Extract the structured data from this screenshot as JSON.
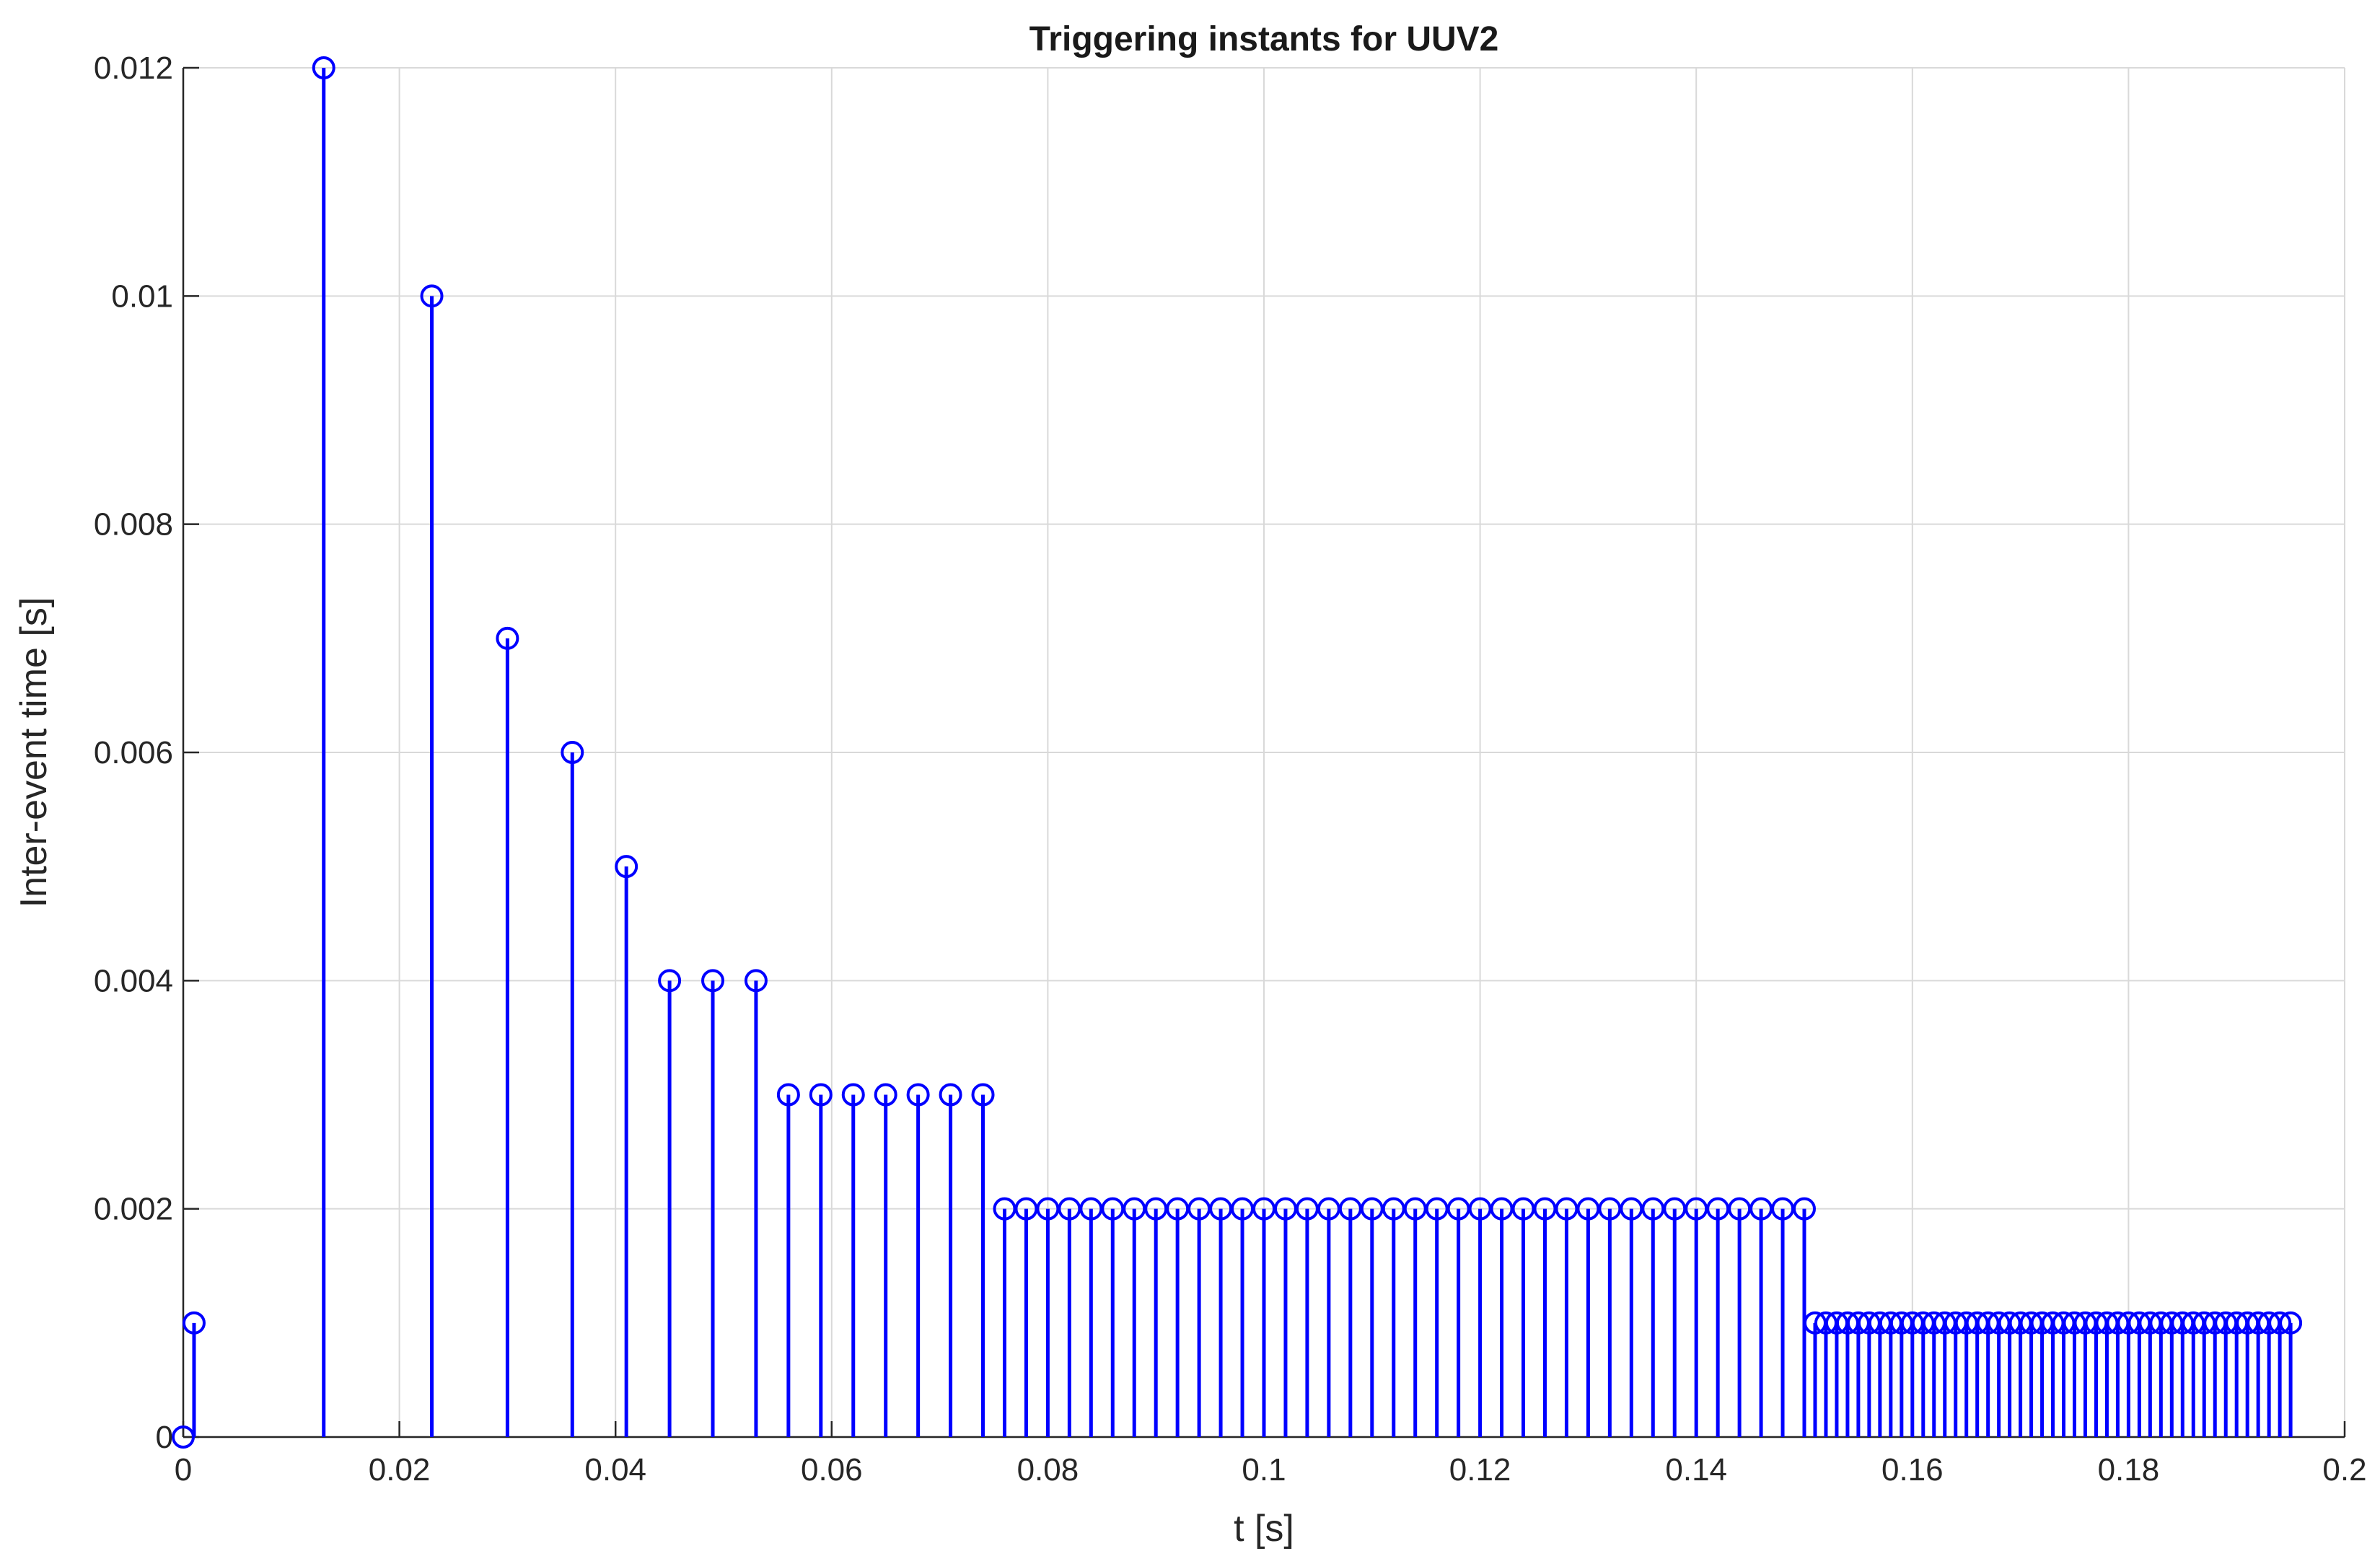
{
  "chart_data": {
    "type": "stem",
    "title": "Triggering instants for UUV2",
    "xlabel": "t [s]",
    "ylabel": "Inter-event time [s]",
    "xlim": [
      0,
      0.2
    ],
    "ylim": [
      0,
      0.012
    ],
    "x_ticks": [
      0,
      0.02,
      0.04,
      0.06,
      0.08,
      0.1,
      0.12,
      0.14,
      0.16,
      0.18,
      0.2
    ],
    "x_tick_labels": [
      "0",
      "0.02",
      "0.04",
      "0.06",
      "0.08",
      "0.1",
      "0.12",
      "0.14",
      "0.16",
      "0.18",
      "0.2"
    ],
    "y_ticks": [
      0,
      0.002,
      0.004,
      0.006,
      0.008,
      0.01,
      0.012
    ],
    "y_tick_labels": [
      "0",
      "0.002",
      "0.004",
      "0.006",
      "0.008",
      "0.01",
      "0.012"
    ],
    "grid": true,
    "series_color": "#0000ff",
    "grid_color": "#d9d9d9",
    "axis_color": "#262626",
    "marker": "circle-open",
    "series": [
      {
        "x": [
          0,
          0.001,
          0.013,
          0.023,
          0.03,
          0.036,
          0.041,
          0.045,
          0.049,
          0.053,
          0.056,
          0.059,
          0.062,
          0.065,
          0.068,
          0.071,
          0.074,
          0.076,
          0.078,
          0.08,
          0.082,
          0.084,
          0.086,
          0.088,
          0.09,
          0.092,
          0.094,
          0.096,
          0.098,
          0.1,
          0.102,
          0.104,
          0.106,
          0.108,
          0.11,
          0.112,
          0.114,
          0.116,
          0.118,
          0.12,
          0.122,
          0.124,
          0.126,
          0.128,
          0.13,
          0.132,
          0.134,
          0.136,
          0.138,
          0.14,
          0.142,
          0.144,
          0.146,
          0.148,
          0.15,
          0.151,
          0.152,
          0.153,
          0.154,
          0.155,
          0.156,
          0.157,
          0.158,
          0.159,
          0.16,
          0.161,
          0.162,
          0.163,
          0.164,
          0.165,
          0.166,
          0.167,
          0.168,
          0.169,
          0.17,
          0.171,
          0.172,
          0.173,
          0.174,
          0.175,
          0.176,
          0.177,
          0.178,
          0.179,
          0.18,
          0.181,
          0.182,
          0.183,
          0.184,
          0.185,
          0.186,
          0.187,
          0.188,
          0.189,
          0.19,
          0.191,
          0.192,
          0.193,
          0.194,
          0.195
        ],
        "y": [
          0,
          0.001,
          0.012,
          0.01,
          0.007,
          0.006,
          0.005,
          0.004,
          0.004,
          0.004,
          0.003,
          0.003,
          0.003,
          0.003,
          0.003,
          0.003,
          0.003,
          0.002,
          0.002,
          0.002,
          0.002,
          0.002,
          0.002,
          0.002,
          0.002,
          0.002,
          0.002,
          0.002,
          0.002,
          0.002,
          0.002,
          0.002,
          0.002,
          0.002,
          0.002,
          0.002,
          0.002,
          0.002,
          0.002,
          0.002,
          0.002,
          0.002,
          0.002,
          0.002,
          0.002,
          0.002,
          0.002,
          0.002,
          0.002,
          0.002,
          0.002,
          0.002,
          0.002,
          0.002,
          0.002,
          0.001,
          0.001,
          0.001,
          0.001,
          0.001,
          0.001,
          0.001,
          0.001,
          0.001,
          0.001,
          0.001,
          0.001,
          0.001,
          0.001,
          0.001,
          0.001,
          0.001,
          0.001,
          0.001,
          0.001,
          0.001,
          0.001,
          0.001,
          0.001,
          0.001,
          0.001,
          0.001,
          0.001,
          0.001,
          0.001,
          0.001,
          0.001,
          0.001,
          0.001,
          0.001,
          0.001,
          0.001,
          0.001,
          0.001,
          0.001,
          0.001,
          0.001,
          0.001,
          0.001,
          0.001
        ]
      }
    ]
  }
}
